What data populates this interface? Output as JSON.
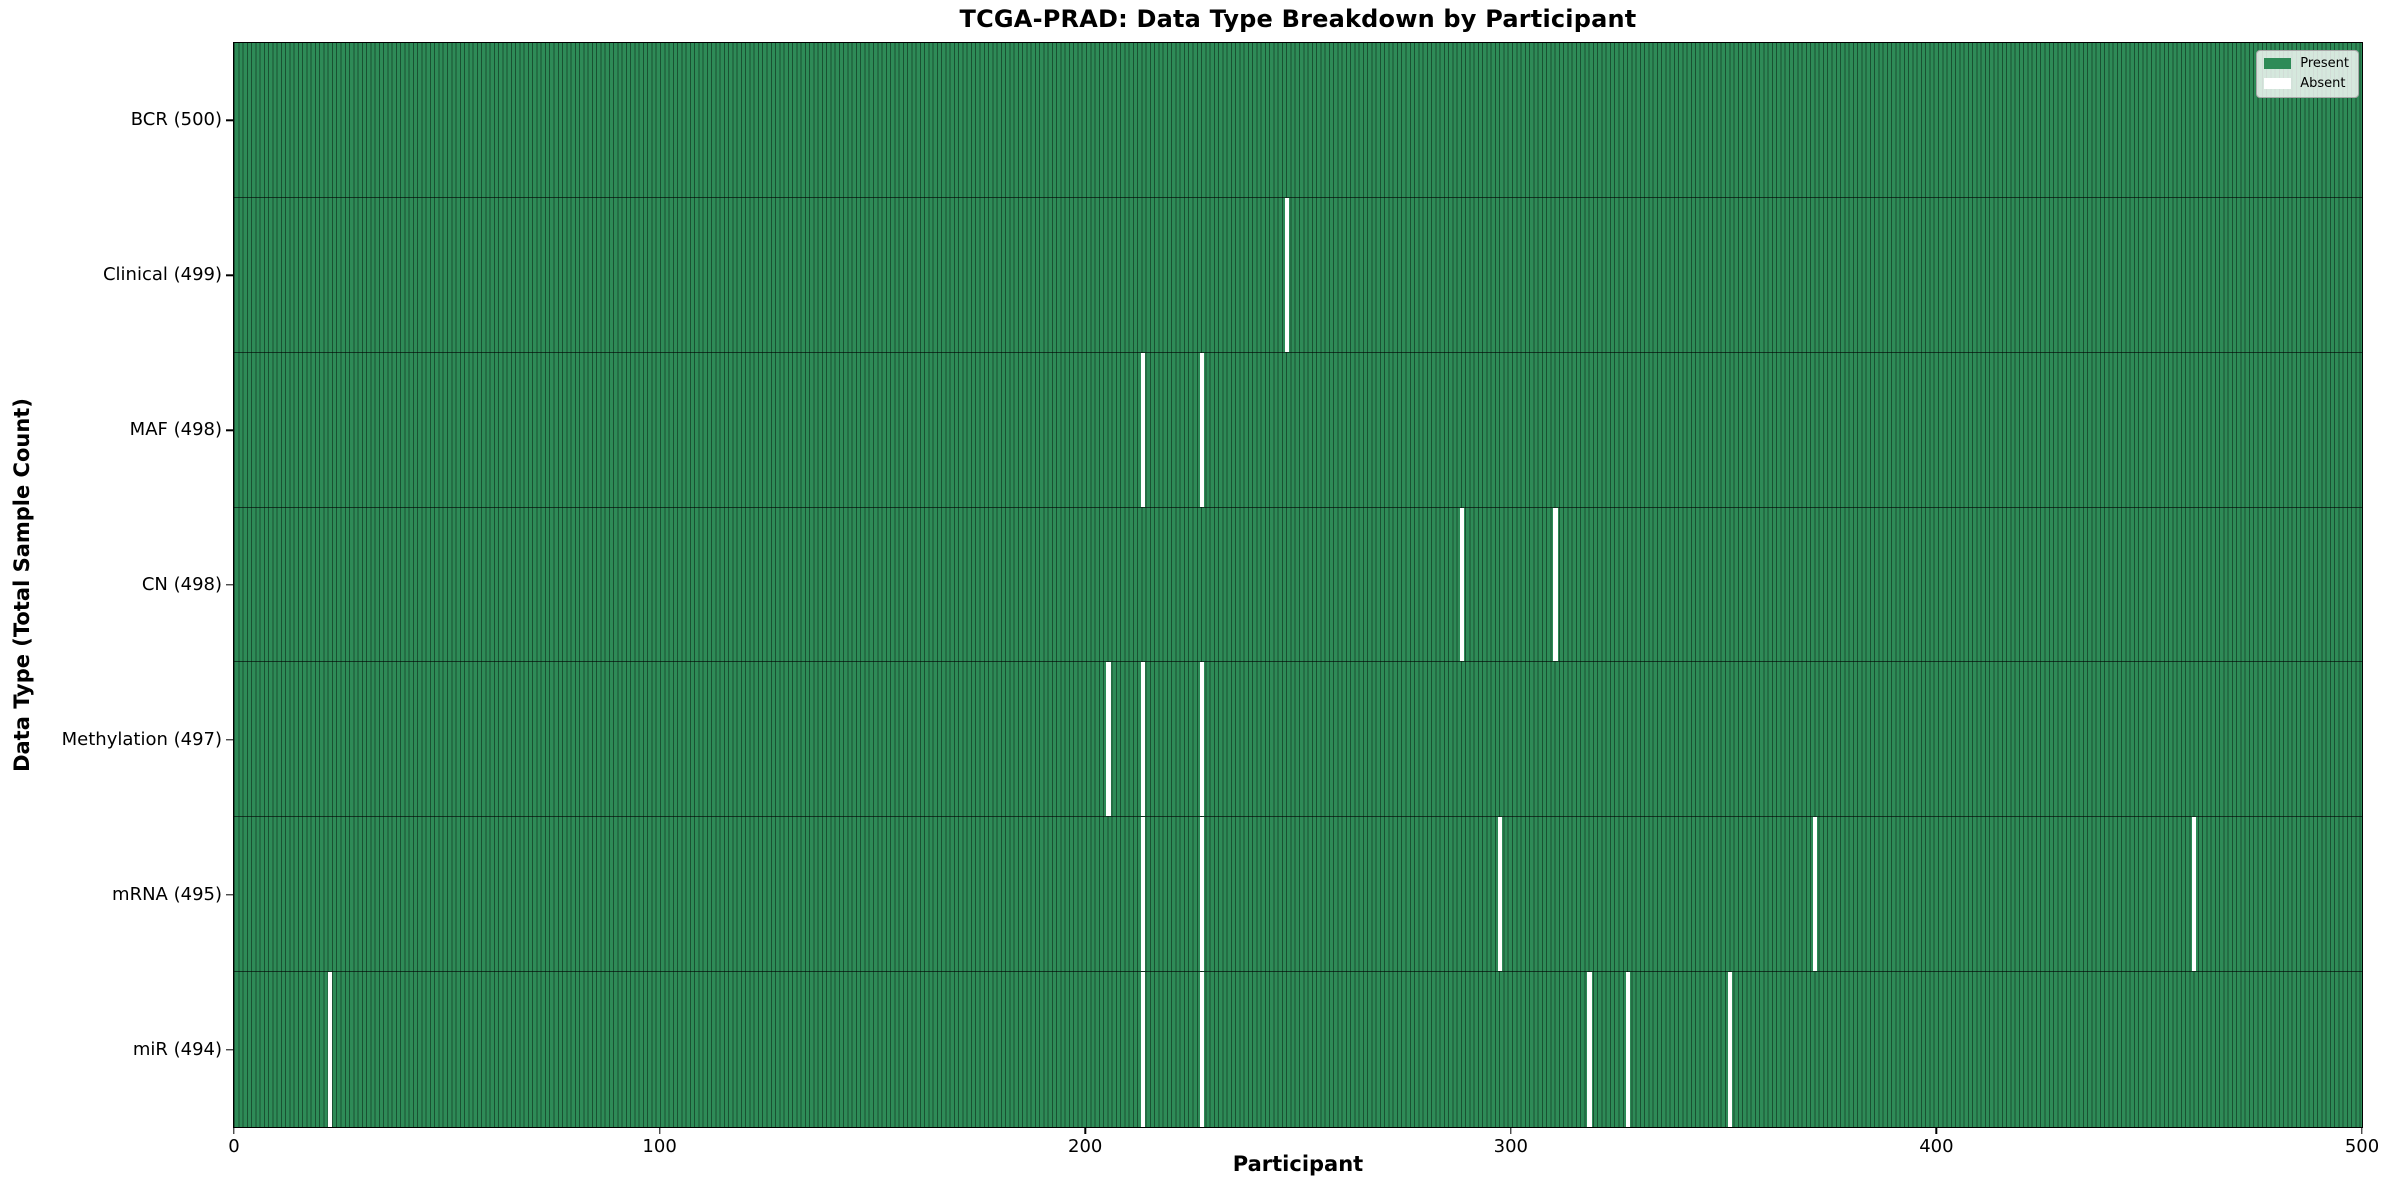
{
  "chart_data": {
    "type": "heatmap",
    "title": "TCGA-PRAD: Data Type Breakdown by Participant",
    "xlabel": "Participant",
    "ylabel": "Data Type (Total Sample Count)",
    "x_ticks": [
      0,
      100,
      200,
      300,
      400,
      500
    ],
    "x_range": [
      0,
      500
    ],
    "n_participants": 500,
    "grid": false,
    "colors": {
      "present": "#2e8b57",
      "absent": "#ffffff",
      "bar_edge": "rgba(8,34,20,0.55)",
      "row_separator": "rgba(0,0,0,0.6)"
    },
    "legend": {
      "position": "upper right",
      "items": [
        {
          "label": "Present",
          "color": "#2e8b57"
        },
        {
          "label": "Absent",
          "color": "#ffffff"
        }
      ]
    },
    "rows": [
      {
        "data_type": "BCR",
        "label": "BCR (500)",
        "total": 500,
        "absent_participants": []
      },
      {
        "data_type": "Clinical",
        "label": "Clinical (499)",
        "total": 499,
        "absent_participants": [
          247
        ]
      },
      {
        "data_type": "MAF",
        "label": "MAF (498)",
        "total": 498,
        "absent_participants": [
          213,
          227
        ]
      },
      {
        "data_type": "CN",
        "label": "CN (498)",
        "total": 498,
        "absent_participants": [
          288,
          310
        ]
      },
      {
        "data_type": "Methylation",
        "label": "Methylation (497)",
        "total": 497,
        "absent_participants": [
          205,
          213,
          227
        ]
      },
      {
        "data_type": "mRNA",
        "label": "mRNA (495)",
        "total": 495,
        "absent_participants": [
          213,
          227,
          297,
          371,
          460
        ]
      },
      {
        "data_type": "miR",
        "label": "miR (494)",
        "total": 494,
        "absent_participants": [
          22,
          213,
          227,
          318,
          327,
          351
        ]
      }
    ]
  }
}
